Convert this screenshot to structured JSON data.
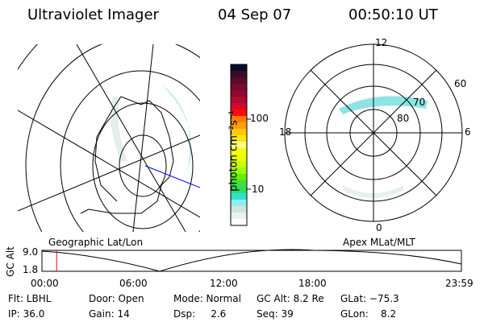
{
  "header": {
    "instrument": "Ultraviolet Imager",
    "date": "04 Sep 07",
    "time": "00:50:10 UT"
  },
  "colorbar": {
    "label": "photon cm⁻²s⁻¹",
    "ticks": [
      "100",
      "10"
    ],
    "colors": [
      "#0a0a2a",
      "#3a0a2a",
      "#5a0a2a",
      "#7a0a2a",
      "#900a30",
      "#b00a30",
      "#d00a30",
      "#ff0a0a",
      "#ff7a0a",
      "#ffa00a",
      "#ffc80a",
      "#ffe60a",
      "#ffff80",
      "#f5ff0a",
      "#e6ff0a",
      "#c8ff0a",
      "#a0ff0a",
      "#60f00a",
      "#40e040",
      "#30dd60",
      "#30e0d0",
      "#90eef0",
      "#d0e4e4",
      "#e8f4f0",
      "#ffffff"
    ]
  },
  "polar": {
    "labels": {
      "top": "12",
      "bottom": "0",
      "left": "18",
      "right": "6"
    },
    "rings": [
      "60",
      "70",
      "80"
    ]
  },
  "maps": {
    "left_title": "Geographic Lat/Lon",
    "right_title": "Apex MLat/MLT"
  },
  "altplot": {
    "ylabel": "GC Alt",
    "yticks": [
      "9.0",
      "1.8"
    ],
    "xticks": [
      "00:00",
      "06:00",
      "12:00",
      "18:00",
      "23:59"
    ],
    "current_fraction": 0.035
  },
  "info": [
    [
      "Flt: LBHL",
      "Door: Open",
      "Mode: Normal",
      "GC Alt: 8.2 Re",
      "GLat: −75.3"
    ],
    [
      "IP: 36.0",
      "Gain: 14",
      "Dsp:     2.6",
      "Seq: 39",
      "GLon:    8.2"
    ]
  ]
}
